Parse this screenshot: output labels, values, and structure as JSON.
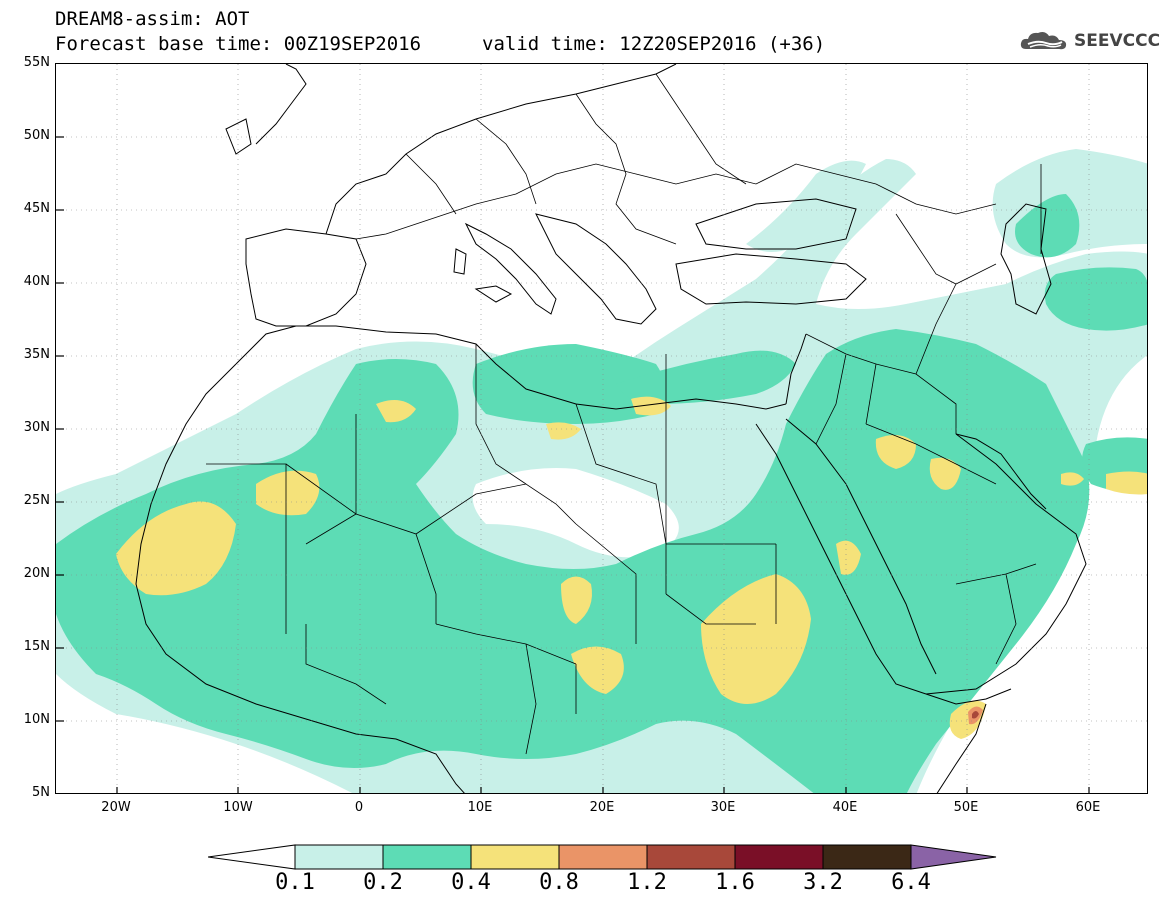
{
  "title": {
    "line1": "DREAM8-assim: AOT",
    "base_time": "Forecast base time: 00Z19SEP2016",
    "valid_time": "valid time: 12Z20SEP2016 (+36)"
  },
  "logo": {
    "text": "SEEVCCC",
    "icon": "cloud-icon"
  },
  "map": {
    "lat_labels": [
      "55N",
      "50N",
      "45N",
      "40N",
      "35N",
      "30N",
      "25N",
      "20N",
      "15N",
      "10N",
      "5N"
    ],
    "lon_labels": [
      "20W",
      "10W",
      "0",
      "10E",
      "20E",
      "30E",
      "40E",
      "50E",
      "60E"
    ],
    "lat_range": [
      5,
      55
    ],
    "lon_range": [
      -25,
      65
    ],
    "grid": "dotted"
  },
  "colorbar": {
    "labels": [
      "0.1",
      "0.2",
      "0.4",
      "0.8",
      "1.2",
      "1.6",
      "3.2",
      "6.4"
    ],
    "colors": [
      "#ffffff",
      "#c8f0e8",
      "#5ddcb5",
      "#f5e27a",
      "#ea9467",
      "#a8483a",
      "#7a0f27",
      "#3b2816",
      "#8a63a6"
    ]
  }
}
